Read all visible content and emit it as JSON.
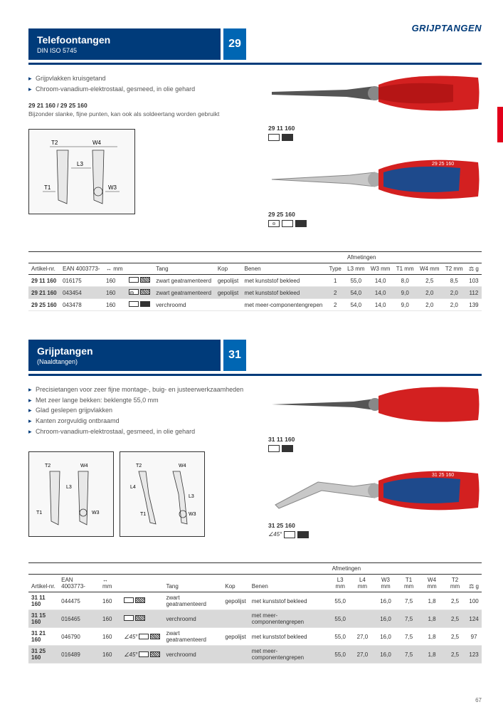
{
  "category": "GRIJPTANGEN",
  "page_number": "67",
  "colors": {
    "brand_blue": "#003b7a",
    "bright_blue": "#0066b3",
    "red": "#e2001a"
  },
  "section1": {
    "title": "Telefoontangen",
    "subtitle": "DIN ISO 5745",
    "number": "29",
    "bullets": [
      "Grijpvlakken kruisgetand",
      "Chroom-vanadium-elektrostaal, gesmeed, in olie gehard"
    ],
    "note_title": "29 21 160 / 29 25 160",
    "note_text": "Bijzonder slanke, fijne punten, kan ook als soldeertang worden gebruikt",
    "images": [
      {
        "label": "29 11 160"
      },
      {
        "label": "29 25 160"
      }
    ],
    "table": {
      "group_label": "Afmetingen",
      "headers": [
        "Artikel-nr.",
        "EAN 4003773-",
        "↔ mm",
        "",
        "Tang",
        "Kop",
        "Benen",
        "Type",
        "L3 mm",
        "W3 mm",
        "T1 mm",
        "W4 mm",
        "T2 mm",
        "⚖ g"
      ],
      "rows": [
        {
          "alt": false,
          "cells": [
            "29 11 160",
            "016175",
            "160",
            "icons1",
            "zwart geatramenteerd",
            "gepolijst",
            "met kunststof bekleed",
            "1",
            "55,0",
            "14,0",
            "8,0",
            "2,5",
            "8,5",
            "103"
          ]
        },
        {
          "alt": true,
          "cells": [
            "29 21 160",
            "043454",
            "160",
            "icons2",
            "zwart geatramenteerd",
            "gepolijst",
            "met kunststof bekleed",
            "2",
            "54,0",
            "14,0",
            "9,0",
            "2,0",
            "2,0",
            "112"
          ]
        },
        {
          "alt": false,
          "cells": [
            "29 25 160",
            "043478",
            "160",
            "icons3",
            "verchroomd",
            "",
            "met meer-componentengrepen",
            "2",
            "54,0",
            "14,0",
            "9,0",
            "2,0",
            "2,0",
            "139"
          ]
        }
      ]
    }
  },
  "section2": {
    "title": "Grijptangen",
    "subtitle": "(Naaldtangen)",
    "number": "31",
    "bullets": [
      "Precisietangen voor zeer fijne montage-, buig- en justeerwerkzaamheden",
      "Met zeer lange bekken: beklengte 55,0 mm",
      "Glad geslepen grijpvlakken",
      "Kanten zorgvuldig ontbraamd",
      "Chroom-vanadium-elektrostaal, gesmeed, in olie gehard"
    ],
    "images": [
      {
        "label": "31 11 160"
      },
      {
        "label": "31 25 160",
        "angle": "45°"
      }
    ],
    "table": {
      "group_label": "Afmetingen",
      "headers": [
        "Artikel-nr.",
        "EAN 4003773-",
        "↔ mm",
        "",
        "Tang",
        "Kop",
        "Benen",
        "L3 mm",
        "L4 mm",
        "W3 mm",
        "T1 mm",
        "W4 mm",
        "T2 mm",
        "⚖ g"
      ],
      "rows": [
        {
          "alt": false,
          "cells": [
            "31 11 160",
            "044475",
            "160",
            "icons1",
            "zwart geatramenteerd",
            "gepolijst",
            "met kunststof bekleed",
            "55,0",
            "",
            "16,0",
            "7,5",
            "1,8",
            "2,5",
            "100"
          ]
        },
        {
          "alt": true,
          "cells": [
            "31 15 160",
            "016465",
            "160",
            "icons1",
            "verchroomd",
            "",
            "met meer-componentengrepen",
            "55,0",
            "",
            "16,0",
            "7,5",
            "1,8",
            "2,5",
            "124"
          ]
        },
        {
          "alt": false,
          "cells": [
            "31 21 160",
            "046790",
            "160",
            "icons45",
            "zwart geatramenteerd",
            "gepolijst",
            "met kunststof bekleed",
            "55,0",
            "27,0",
            "16,0",
            "7,5",
            "1,8",
            "2,5",
            "97"
          ]
        },
        {
          "alt": true,
          "cells": [
            "31 25 160",
            "016489",
            "160",
            "icons45",
            "verchroomd",
            "",
            "met meer-componentengrepen",
            "55,0",
            "27,0",
            "16,0",
            "7,5",
            "1,8",
            "2,5",
            "123"
          ]
        }
      ]
    }
  }
}
